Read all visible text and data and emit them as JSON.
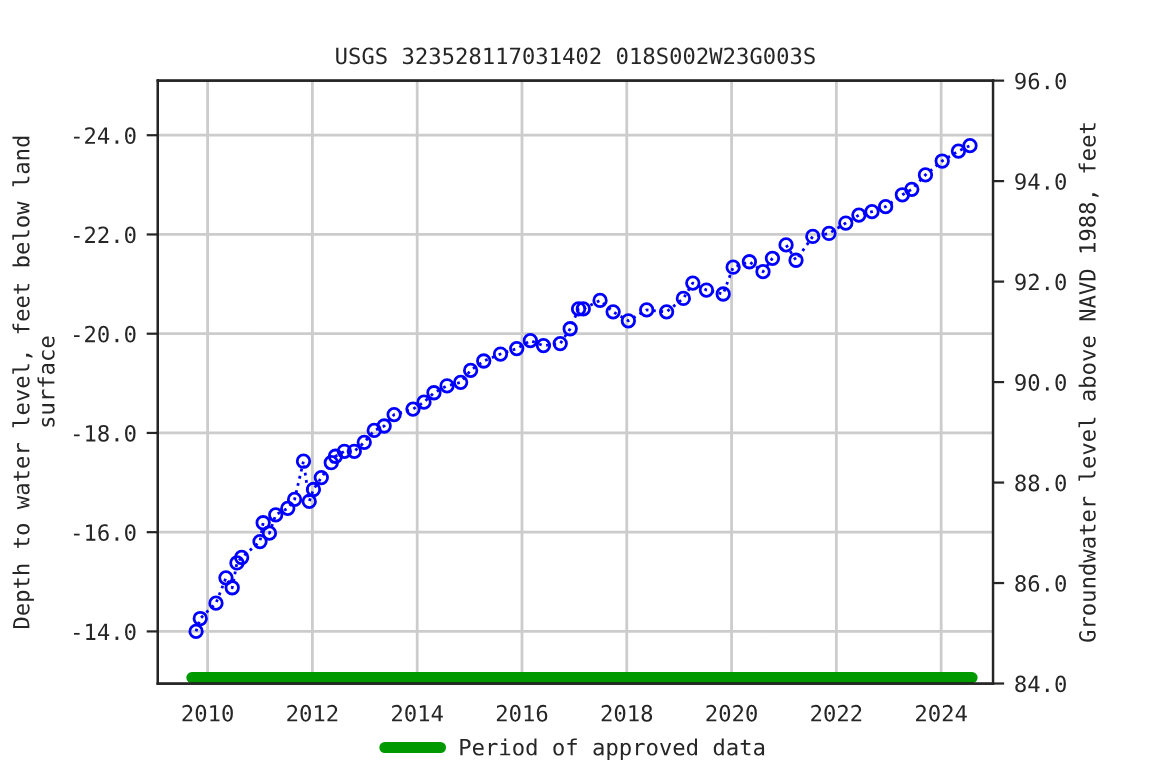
{
  "chart_data": {
    "type": "line",
    "title": "USGS 323528117031402 018S002W23G003S",
    "ylabel": "Depth to water level, feet below land\nsurface",
    "y2label": "Groundwater level above NAVD 1988, feet",
    "xlim": [
      2009.05,
      2024.99
    ],
    "xticks": [
      2010,
      2012,
      2014,
      2016,
      2018,
      2020,
      2022,
      2024
    ],
    "ylim": [
      -12.95,
      -25.1
    ],
    "yticks": [
      {
        "value": -14,
        "label": "-14.0"
      },
      {
        "value": -16,
        "label": "-16.0"
      },
      {
        "value": -18,
        "label": "-18.0"
      },
      {
        "value": -20,
        "label": "-20.0"
      },
      {
        "value": -22,
        "label": "-22.0"
      },
      {
        "value": -24,
        "label": "-24.0"
      }
    ],
    "y2lim": [
      84,
      96
    ],
    "y2ticks": [
      {
        "value": 84,
        "label": "84.0"
      },
      {
        "value": 86,
        "label": "86.0"
      },
      {
        "value": 88,
        "label": "88.0"
      },
      {
        "value": 90,
        "label": "90.0"
      },
      {
        "value": 92,
        "label": "92.0"
      },
      {
        "value": 94,
        "label": "94.0"
      },
      {
        "value": 96,
        "label": "96.0"
      }
    ],
    "grid": true,
    "legend": "bottom",
    "series": [
      {
        "color": "#0000ff",
        "marker": "circle",
        "line_style": "dotted",
        "x": [
          2009.78,
          2009.86,
          2010.16,
          2010.35,
          2010.47,
          2010.56,
          2010.65,
          2011.0,
          2011.06,
          2011.18,
          2011.3,
          2011.53,
          2011.66,
          2011.83,
          2011.94,
          2012.02,
          2012.17,
          2012.36,
          2012.44,
          2012.61,
          2012.8,
          2012.99,
          2013.18,
          2013.37,
          2013.56,
          2013.92,
          2014.13,
          2014.32,
          2014.57,
          2014.83,
          2015.02,
          2015.27,
          2015.59,
          2015.9,
          2016.16,
          2016.41,
          2016.73,
          2016.92,
          2017.08,
          2017.17,
          2017.49,
          2017.74,
          2018.03,
          2018.38,
          2018.76,
          2019.08,
          2019.26,
          2019.52,
          2019.84,
          2020.03,
          2020.34,
          2020.6,
          2020.78,
          2021.04,
          2021.23,
          2021.55,
          2021.86,
          2022.18,
          2022.43,
          2022.68,
          2022.94,
          2023.26,
          2023.44,
          2023.7,
          2024.02,
          2024.33,
          2024.55
        ],
        "values": [
          -14.0,
          -14.26,
          -14.57,
          -15.08,
          -14.88,
          -15.38,
          -15.49,
          -15.81,
          -16.19,
          -15.98,
          -16.35,
          -16.48,
          -16.66,
          -17.43,
          -16.62,
          -16.86,
          -17.1,
          -17.4,
          -17.53,
          -17.63,
          -17.63,
          -17.81,
          -18.05,
          -18.14,
          -18.37,
          -18.48,
          -18.62,
          -18.81,
          -18.95,
          -19.02,
          -19.26,
          -19.45,
          -19.59,
          -19.7,
          -19.86,
          -19.76,
          -19.8,
          -20.1,
          -20.5,
          -20.5,
          -20.67,
          -20.44,
          -20.26,
          -20.48,
          -20.44,
          -20.71,
          -21.02,
          -20.88,
          -20.8,
          -21.34,
          -21.45,
          -21.25,
          -21.52,
          -21.79,
          -21.48,
          -21.96,
          -22.02,
          -22.23,
          -22.39,
          -22.46,
          -22.56,
          -22.8,
          -22.91,
          -23.2,
          -23.48,
          -23.68,
          -23.79
        ]
      },
      {
        "name": "Period of approved data",
        "color": "#009900",
        "marker": "none",
        "line_style": "solid",
        "x": [
          2009.7,
          2024.59
        ],
        "values": [
          -13.07,
          -13.07
        ]
      }
    ]
  }
}
